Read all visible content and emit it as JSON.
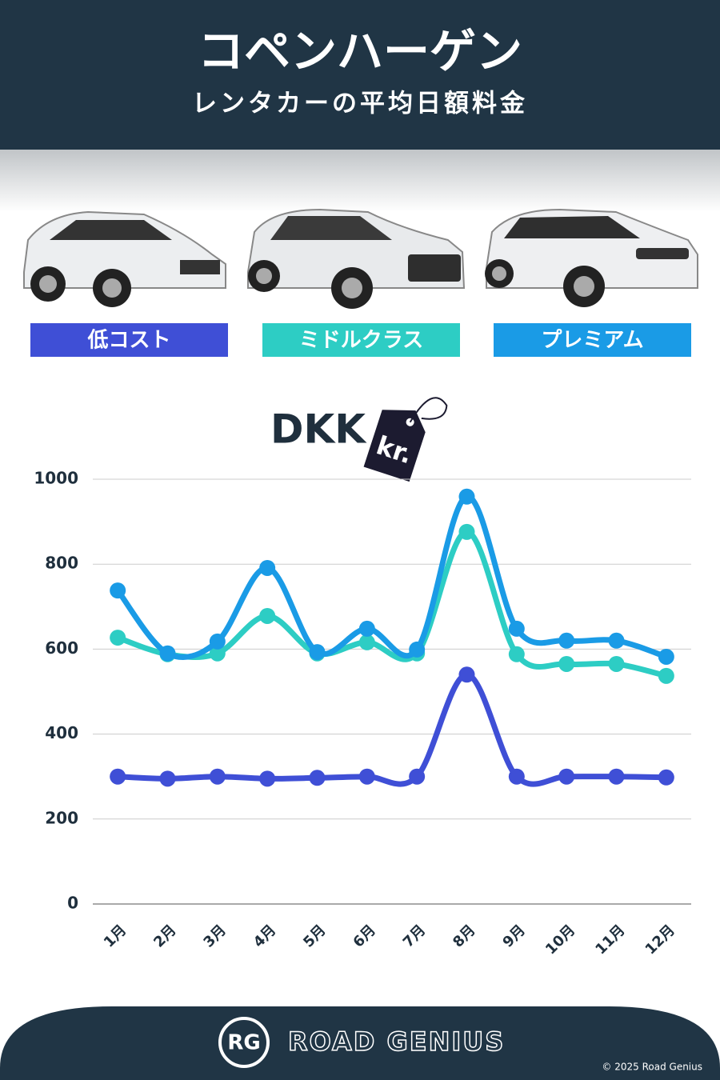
{
  "header": {
    "title": "コペンハーゲン",
    "subtitle": "レンタカーの平均日額料金"
  },
  "currency": {
    "code": "DKK",
    "symbol": "kr."
  },
  "chart_data": {
    "type": "line",
    "categories": [
      "1月",
      "2月",
      "3月",
      "4月",
      "5月",
      "6月",
      "7月",
      "8月",
      "9月",
      "10月",
      "11月",
      "12月"
    ],
    "series": [
      {
        "name": "低コスト",
        "color": "#3f4fd6",
        "values": [
          300,
          295,
          300,
          295,
          297,
          300,
          300,
          540,
          300,
          300,
          300,
          298
        ]
      },
      {
        "name": "ミドルクラス",
        "color": "#2dcdc4",
        "values": [
          627,
          588,
          590,
          678,
          590,
          616,
          590,
          876,
          588,
          565,
          565,
          537
        ]
      },
      {
        "name": "プレミアム",
        "color": "#1a9be6",
        "values": [
          738,
          590,
          618,
          791,
          593,
          648,
          599,
          959,
          648,
          620,
          620,
          582
        ]
      }
    ],
    "ylim": [
      0,
      1000
    ],
    "yticks": [
      0,
      200,
      400,
      600,
      800,
      1000
    ],
    "grid": true
  },
  "footer": {
    "logo": "RG",
    "brand": "ROAD GENIUS",
    "copyright": "© 2025 Road Genius"
  }
}
